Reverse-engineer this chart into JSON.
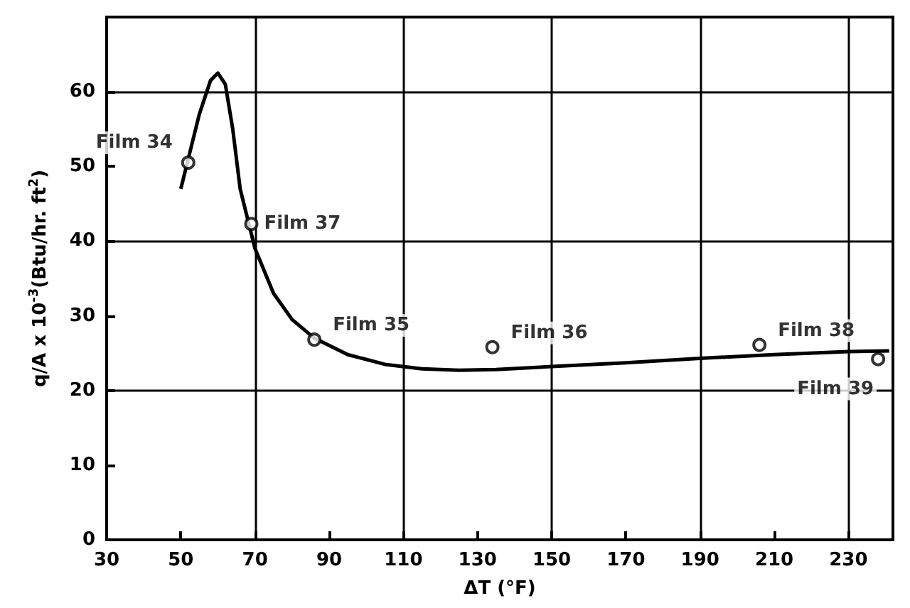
{
  "chart_data": {
    "type": "line",
    "xlabel": "ΔT (°F)",
    "ylabel": "q/A x 10$^{-3}$(Btu/hr. ft$^{2}$)",
    "xlim": [
      30,
      242
    ],
    "xticks": [
      30,
      50,
      70,
      90,
      110,
      130,
      150,
      170,
      190,
      210,
      230
    ],
    "ylim": [
      0,
      70
    ],
    "yticks": [
      0,
      10,
      20,
      30,
      40,
      50,
      60
    ],
    "grid": true,
    "series": [
      {
        "color": "#000000",
        "marker": "none",
        "x": [
          50,
          52,
          55,
          58,
          60,
          62,
          64,
          66,
          68,
          70,
          75,
          80,
          86,
          95,
          105,
          115,
          125,
          135,
          150,
          170,
          190,
          210,
          230,
          241
        ],
        "values": [
          47,
          51,
          57,
          61.5,
          62.5,
          61,
          55,
          47,
          43,
          39,
          33,
          29.5,
          27,
          24.8,
          23.5,
          22.9,
          22.7,
          22.8,
          23.2,
          23.7,
          24.3,
          24.8,
          25.2,
          25.3
        ]
      },
      {
        "type": "scatter",
        "color": "#000000",
        "marker": "circle",
        "x": [
          52,
          69,
          86,
          134,
          206,
          238
        ],
        "values": [
          50.5,
          42.3,
          26.8,
          25.8,
          26.1,
          24.2
        ]
      }
    ],
    "annotations": [
      {
        "text": "Film 34",
        "x": 52,
        "y": 50.5
      },
      {
        "text": "Film 37",
        "x": 69,
        "y": 42.3
      },
      {
        "text": "Film 35",
        "x": 86,
        "y": 26.8
      },
      {
        "text": "Film 36",
        "x": 134,
        "y": 25.8
      },
      {
        "text": "Film 38",
        "x": 206,
        "y": 26.1
      },
      {
        "text": "Film 39",
        "x": 238,
        "y": 24.2
      }
    ]
  }
}
